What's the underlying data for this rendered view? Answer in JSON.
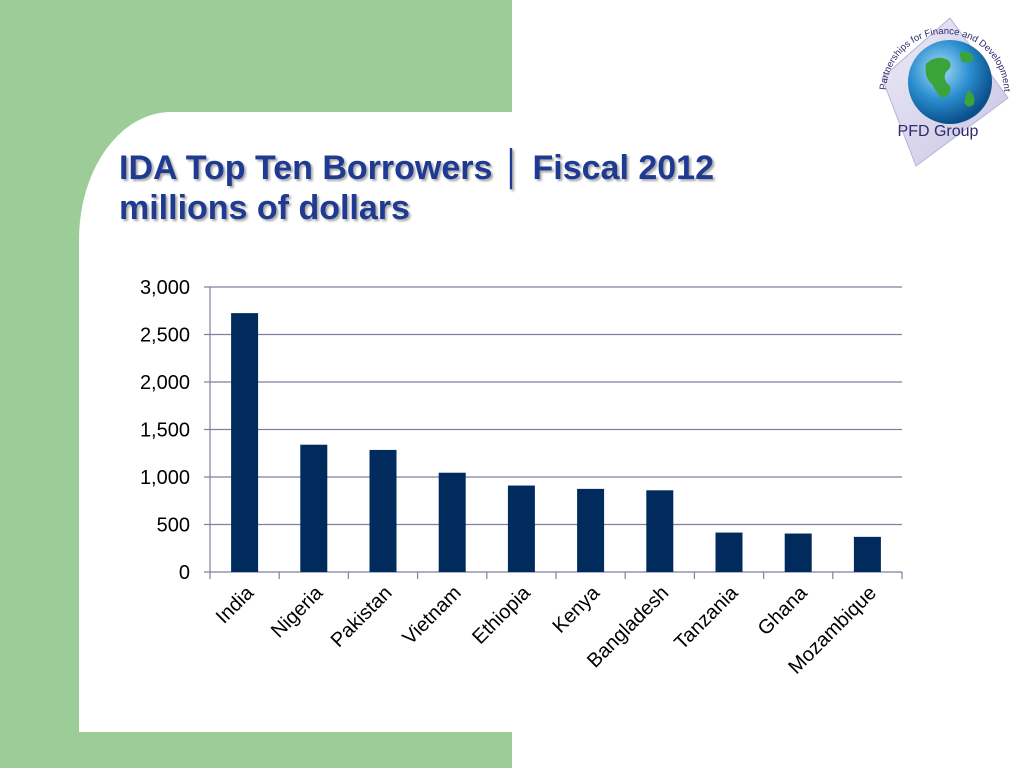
{
  "slide": {
    "title_line1": "IDA Top Ten Borrowers │ Fiscal 2012",
    "title_line2": "millions of dollars"
  },
  "logo": {
    "icon": "globe-icon",
    "ring_text": "Partnerships for Finance and Development Group",
    "label": "PFD Group"
  },
  "colors": {
    "bar": "#002b5c",
    "panel_green": "#9ccc98",
    "title": "#1f3a93",
    "gridline": "#7f7f9f"
  },
  "chart_data": {
    "type": "bar",
    "title": "IDA Top Ten Borrowers │ Fiscal 2012",
    "subtitle": "millions of dollars",
    "categories": [
      "India",
      "Nigeria",
      "Pakistan",
      "Vietnam",
      "Ethiopia",
      "Kenya",
      "Bangladesh",
      "Tanzania",
      "Ghana",
      "Mozambique"
    ],
    "values": [
      2725,
      1340,
      1285,
      1045,
      910,
      875,
      860,
      415,
      405,
      370
    ],
    "ylim": [
      0,
      3000
    ],
    "yticks": [
      0,
      500,
      1000,
      1500,
      2000,
      2500,
      3000
    ],
    "ytick_labels": [
      "0",
      "500",
      "1,000",
      "1,500",
      "2,000",
      "2,500",
      "3,000"
    ],
    "grid": true,
    "legend": "none",
    "xlabel": "",
    "ylabel": ""
  }
}
